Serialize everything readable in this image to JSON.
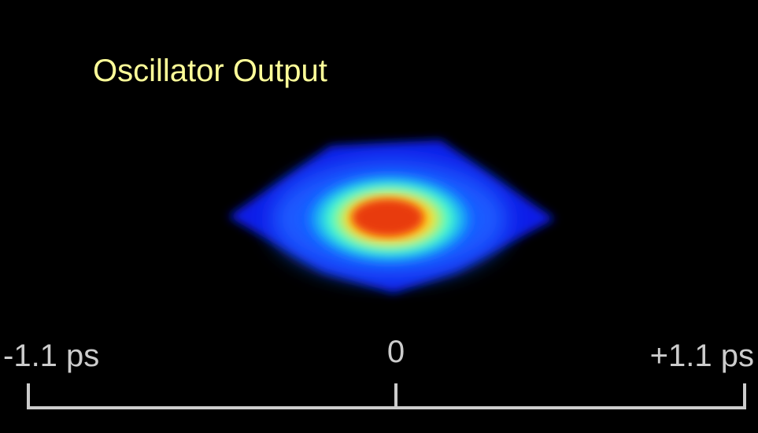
{
  "title": "Oscillator Output",
  "scale": {
    "left": "-1.1 ps",
    "center": "0",
    "right": "+1.1 ps"
  }
}
